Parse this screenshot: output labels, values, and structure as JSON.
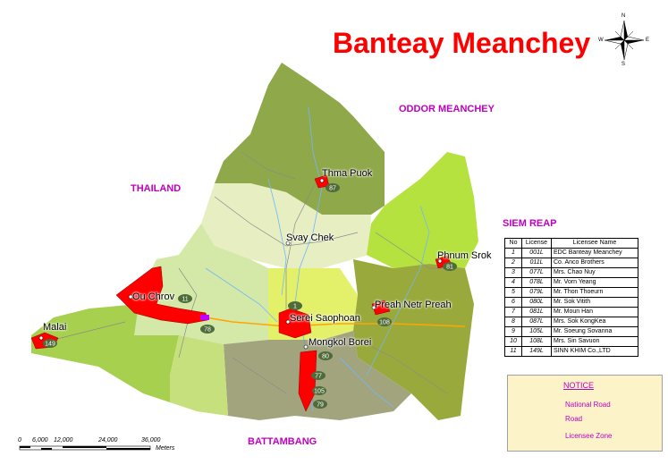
{
  "title": "Banteay Meanchey",
  "compass": {
    "n": "N",
    "s": "S",
    "e": "E",
    "w": "W"
  },
  "regions": {
    "thailand": "THAILAND",
    "oddor_meanchey": "ODDOR MEANCHEY",
    "siem_reap": "SIEM REAP",
    "battambang": "BATTAMBANG"
  },
  "towns": {
    "thma_puok": "Thma Puok",
    "svay_chek": "Svay Chek",
    "phnum_srok": "Phnum Srok",
    "ou_chrov": "Ou Chrov",
    "malai": "Malai",
    "serei_saophoan": "Serei Saophoan",
    "preah_netr_preah": "Preah Netr Preah",
    "mongkol_borei": "Mongkol Borei"
  },
  "badges": [
    "87",
    "81",
    "11",
    "1",
    "78",
    "149",
    "108",
    "80",
    "77",
    "105",
    "79"
  ],
  "license_table": {
    "headers": [
      "No",
      "License",
      "Licensee Name"
    ],
    "rows": [
      [
        "1",
        "001L",
        "EDC Banteay Meanchey"
      ],
      [
        "2",
        "011L",
        "Co. Anco Brothers"
      ],
      [
        "3",
        "077L",
        "Mrs. Chao Nuy"
      ],
      [
        "4",
        "078L",
        "Mr. Vorn Yeang"
      ],
      [
        "5",
        "079L",
        "Mr. Thon Thoeurn"
      ],
      [
        "6",
        "080L",
        "Mr. Sok Vitith"
      ],
      [
        "7",
        "081L",
        "Mr. Moun Han"
      ],
      [
        "8",
        "087L",
        "Mrs. Sok KongKea"
      ],
      [
        "9",
        "105L",
        "Mr. Soeung Sovanna"
      ],
      [
        "10",
        "108L",
        "Mrs. Sin Savuon"
      ],
      [
        "11",
        "149L",
        "SINN KHIM Co.,LTD"
      ]
    ]
  },
  "notice": {
    "title": "NOTICE",
    "national_road": "National Road",
    "road": "Road",
    "licensee_zone": "Licensee Zone",
    "colors": {
      "national_road": "#ffa500",
      "road": "#a0a0a0",
      "zone_red": "#ff0000",
      "zone_purple": "#c000ff"
    }
  },
  "scale": {
    "ticks": [
      "0",
      "6,000",
      "12,000",
      "24,000",
      "36,000"
    ],
    "unit": "Meters"
  }
}
